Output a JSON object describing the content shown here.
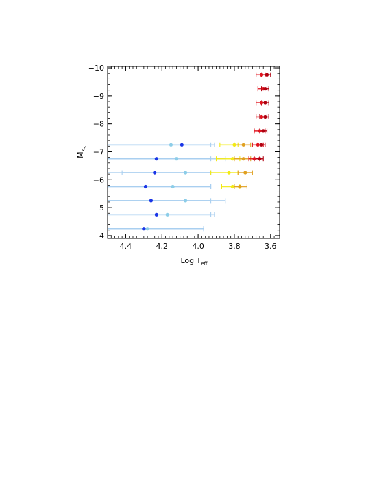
{
  "chart_data": {
    "type": "scatter",
    "title": "",
    "xlabel": {
      "main": "Log T",
      "sub": "eff"
    },
    "ylabel": {
      "main": "M",
      "sub": "K",
      "subsub": "s"
    },
    "xlim": [
      4.5,
      3.55
    ],
    "ylim": [
      -3.9,
      -10.05
    ],
    "x_reversed": true,
    "y_reversed": true,
    "x_ticks": [
      4.4,
      4.2,
      4.0,
      3.8,
      3.6
    ],
    "x_tick_labels": [
      "4.4",
      "4.2",
      "4.0",
      "3.8",
      "3.6"
    ],
    "y_ticks": [
      -10,
      -9,
      -8,
      -7,
      -6,
      -5,
      -4
    ],
    "y_tick_labels": [
      "−10",
      "−9",
      "−8",
      "−7",
      "−6",
      "−5",
      "−4"
    ],
    "grid": false,
    "legend": "none",
    "colors": {
      "blue": "#1a35e6",
      "lightblue": "#8ccde8",
      "lightblue_bar": "#a9cff0",
      "yellow": "#f2ea15",
      "orange": "#e0a020",
      "red": "#e0141e",
      "darkred": "#b00010"
    },
    "series": [
      {
        "color": "blue",
        "points": [
          {
            "x": 4.09,
            "y": -7.25,
            "xerr": [
              4.5,
              3.93
            ]
          },
          {
            "x": 4.23,
            "y": -6.75,
            "xerr": [
              4.5,
              3.93
            ]
          },
          {
            "x": 4.24,
            "y": -6.25,
            "xerr": [
              4.5,
              3.93
            ]
          },
          {
            "x": 4.29,
            "y": -5.75,
            "xerr": [
              4.5,
              3.93
            ]
          },
          {
            "x": 4.26,
            "y": -5.25,
            "xerr": [
              4.5,
              3.93
            ]
          },
          {
            "x": 4.23,
            "y": -4.75,
            "xerr": [
              4.5,
              3.93
            ]
          },
          {
            "x": 4.3,
            "y": -4.25,
            "xerr": [
              4.5,
              3.97
            ]
          }
        ]
      },
      {
        "color": "lightblue",
        "points": [
          {
            "x": 4.15,
            "y": -7.25,
            "xerr": [
              4.5,
              3.91
            ]
          },
          {
            "x": 4.12,
            "y": -6.75,
            "xerr": [
              4.5,
              3.85
            ]
          },
          {
            "x": 4.07,
            "y": -6.25,
            "xerr": [
              4.42,
              3.93
            ]
          },
          {
            "x": 4.14,
            "y": -5.75,
            "xerr": [
              4.5,
              3.93
            ]
          },
          {
            "x": 4.07,
            "y": -5.25,
            "xerr": [
              4.5,
              3.85
            ]
          },
          {
            "x": 4.17,
            "y": -4.75,
            "xerr": [
              4.5,
              3.91
            ]
          },
          {
            "x": 4.28,
            "y": -4.25,
            "xerr": [
              4.5,
              3.97
            ]
          }
        ]
      },
      {
        "color": "yellow",
        "points": [
          {
            "x": 3.8,
            "y": -7.25,
            "xerr": [
              3.88,
              3.78
            ]
          },
          {
            "x": 3.81,
            "y": -6.75,
            "xerr": [
              3.9,
              3.77
            ]
          },
          {
            "x": 3.83,
            "y": -6.25,
            "xerr": [
              3.93,
              3.78
            ]
          },
          {
            "x": 3.81,
            "y": -5.75,
            "xerr": [
              3.87,
              3.77
            ]
          }
        ]
      },
      {
        "color": "orange",
        "points": [
          {
            "x": 3.75,
            "y": -7.25,
            "xerr": [
              3.8,
              3.71
            ]
          },
          {
            "x": 3.75,
            "y": -6.75,
            "xerr": [
              3.8,
              3.71
            ]
          },
          {
            "x": 3.74,
            "y": -6.25,
            "xerr": [
              3.78,
              3.7
            ]
          },
          {
            "x": 3.77,
            "y": -5.75,
            "xerr": [
              3.8,
              3.73
            ]
          }
        ]
      },
      {
        "color": "red",
        "points": [
          {
            "x": 3.65,
            "y": -9.75,
            "xerr": [
              3.68,
              3.63
            ]
          },
          {
            "x": 3.64,
            "y": -9.25,
            "xerr": [
              3.67,
              3.62
            ]
          },
          {
            "x": 3.65,
            "y": -8.75,
            "xerr": [
              3.68,
              3.62
            ]
          },
          {
            "x": 3.65,
            "y": -8.25,
            "xerr": [
              3.68,
              3.62
            ]
          },
          {
            "x": 3.66,
            "y": -7.75,
            "xerr": [
              3.69,
              3.63
            ]
          },
          {
            "x": 3.67,
            "y": -7.25,
            "xerr": [
              3.7,
              3.64
            ]
          },
          {
            "x": 3.69,
            "y": -6.75,
            "xerr": [
              3.72,
              3.66
            ]
          }
        ]
      },
      {
        "color": "darkred",
        "points": [
          {
            "x": 3.62,
            "y": -9.75,
            "xerr": [
              3.65,
              3.6
            ]
          },
          {
            "x": 3.63,
            "y": -9.25,
            "xerr": [
              3.65,
              3.61
            ]
          },
          {
            "x": 3.63,
            "y": -8.75,
            "xerr": [
              3.65,
              3.61
            ]
          },
          {
            "x": 3.63,
            "y": -8.25,
            "xerr": [
              3.66,
              3.61
            ]
          },
          {
            "x": 3.64,
            "y": -7.75,
            "xerr": [
              3.66,
              3.62
            ]
          },
          {
            "x": 3.65,
            "y": -7.25,
            "xerr": [
              3.67,
              3.63
            ]
          },
          {
            "x": 3.66,
            "y": -6.75,
            "xerr": [
              3.69,
              3.64
            ]
          }
        ]
      }
    ]
  }
}
